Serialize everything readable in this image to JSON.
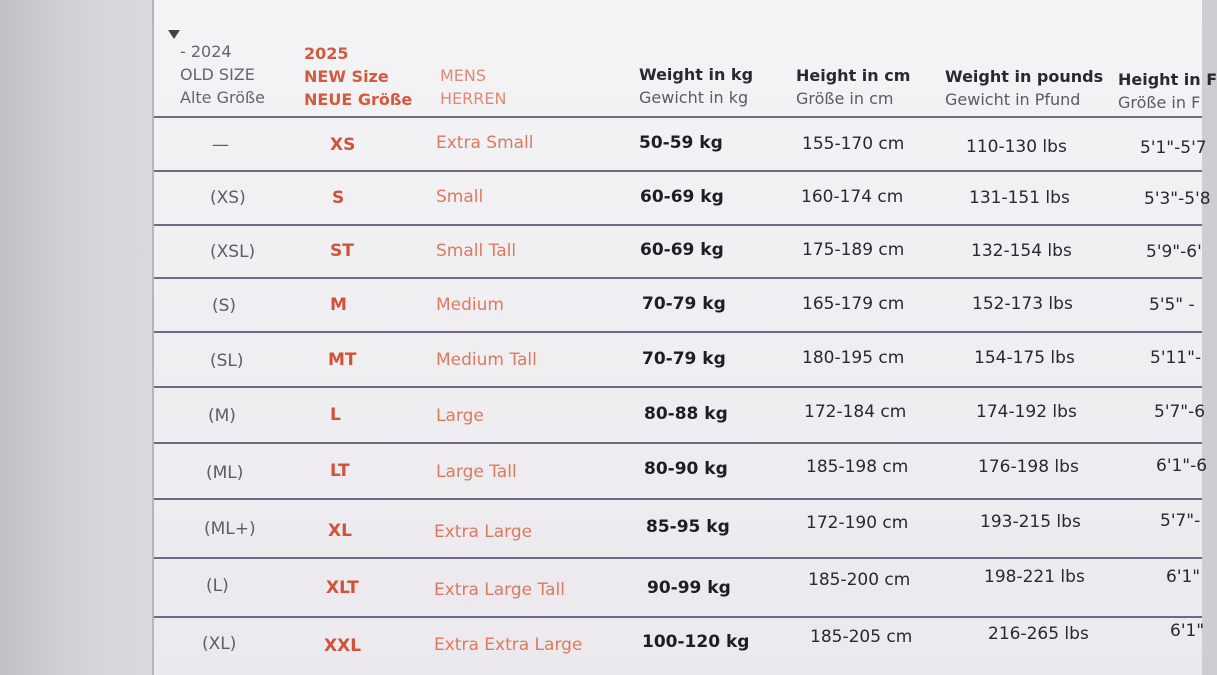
{
  "headers": {
    "old": [
      "- 2024",
      "OLD SIZE",
      "Alte Größe"
    ],
    "new": [
      "2025",
      "NEW Size",
      "NEUE Größe"
    ],
    "mens": [
      "MENS",
      "HERREN"
    ],
    "kg": [
      "Weight in kg",
      "Gewicht in kg"
    ],
    "cm": [
      "Height in cm",
      "Größe in cm"
    ],
    "lbs": [
      "Weight in pounds",
      "Gewicht in Pfund"
    ],
    "ft": [
      "Height in F",
      "Größe in F"
    ]
  },
  "rows": [
    {
      "old": "—",
      "new": "XS",
      "mens": "Extra Small",
      "kg": "50-59 kg",
      "cm": "155-170 cm",
      "lbs": "110-130 lbs",
      "ft": "5'1\"-5'7"
    },
    {
      "old": "(XS)",
      "new": "S",
      "mens": "Small",
      "kg": "60-69 kg",
      "cm": "160-174 cm",
      "lbs": "131-151 lbs",
      "ft": "5'3\"-5'8"
    },
    {
      "old": "(XSL)",
      "new": "ST",
      "mens": "Small Tall",
      "kg": "60-69 kg",
      "cm": "175-189 cm",
      "lbs": "132-154 lbs",
      "ft": "5'9\"-6'"
    },
    {
      "old": "(S)",
      "new": "M",
      "mens": "Medium",
      "kg": "70-79 kg",
      "cm": "165-179 cm",
      "lbs": "152-173 lbs",
      "ft": "5'5\" -"
    },
    {
      "old": "(SL)",
      "new": "MT",
      "mens": "Medium Tall",
      "kg": "70-79 kg",
      "cm": "180-195 cm",
      "lbs": "154-175 lbs",
      "ft": "5'11\"-"
    },
    {
      "old": "(M)",
      "new": "L",
      "mens": "Large",
      "kg": "80-88 kg",
      "cm": "172-184 cm",
      "lbs": "174-192 lbs",
      "ft": "5'7\"-6"
    },
    {
      "old": "(ML)",
      "new": "LT",
      "mens": "Large Tall",
      "kg": "80-90 kg",
      "cm": "185-198 cm",
      "lbs": "176-198 lbs",
      "ft": "6'1\"-6"
    },
    {
      "old": "(ML+)",
      "new": "XL",
      "mens": "Extra Large",
      "kg": "85-95 kg",
      "cm": "172-190 cm",
      "lbs": "193-215 lbs",
      "ft": "5'7\"-"
    },
    {
      "old": "(L)",
      "new": "XLT",
      "mens": "Extra Large Tall",
      "kg": "90-99 kg",
      "cm": "185-200 cm",
      "lbs": "198-221 lbs",
      "ft": "6'1\""
    },
    {
      "old": "(XL)",
      "new": "XXL",
      "mens": "Extra Extra Large",
      "kg": "100-120 kg",
      "cm": "185-205 cm",
      "lbs": "216-265 lbs",
      "ft": "6'1\""
    }
  ],
  "colors": {
    "new_size": "#d2513a",
    "mens": "#dc7a5f",
    "rule": "#6f6a86"
  }
}
